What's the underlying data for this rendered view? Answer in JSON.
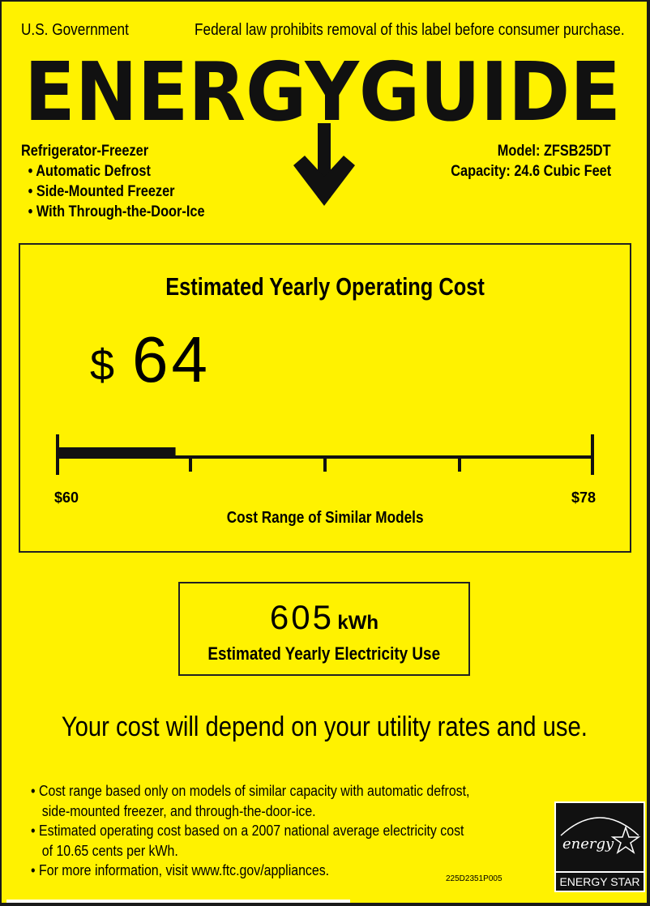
{
  "header": {
    "government": "U.S. Government",
    "law_notice": "Federal law prohibits removal of this label before consumer purchase.",
    "logo_text": "ENERGYGUIDE"
  },
  "product": {
    "type": "Refrigerator-Freezer",
    "features": [
      "• Automatic Defrost",
      "• Side-Mounted Freezer",
      "• With Through-the-Door-Ice"
    ],
    "model": "Model: ZFSB25DT",
    "capacity": "Capacity: 24.6 Cubic Feet"
  },
  "cost": {
    "title": "Estimated Yearly Operating Cost",
    "currency": "$",
    "value": "64",
    "range_low": "$60",
    "range_high": "$78",
    "range_label": "Cost Range of Similar Models",
    "scale": {
      "min": 60,
      "max": 78,
      "value": 64
    }
  },
  "electricity": {
    "value": "605",
    "unit": "kWh",
    "label": "Estimated Yearly Electricity Use"
  },
  "disclaimer": "Your cost will depend on your utility rates and use.",
  "notes": [
    {
      "line1": "Cost range based only on models of similar capacity with automatic defrost,",
      "line2": "side-mounted freezer, and through-the-door-ice."
    },
    {
      "line1": "Estimated operating cost based on a 2007 national average electricity cost",
      "line2": "of 10.65 cents per kWh."
    },
    {
      "line1": "For more information, visit www.ftc.gov/appliances.",
      "line2": ""
    }
  ],
  "label_code": "225D2351P005",
  "energy_star": {
    "script": "energy",
    "text": "ENERGY STAR"
  },
  "colors": {
    "label_yellow": "#FFF200",
    "ink": "#111111"
  }
}
